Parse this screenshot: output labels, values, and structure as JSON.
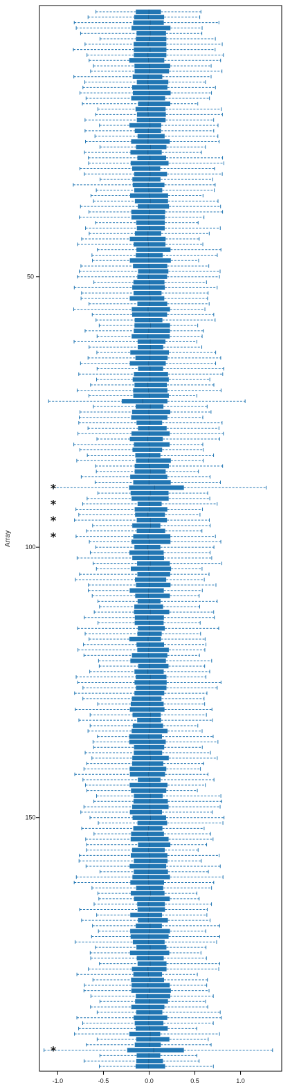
{
  "chart_data": {
    "type": "boxplot",
    "orientation": "horizontal",
    "ylabel": "Array",
    "xlabel": "",
    "xlim": [
      -1.2,
      1.45
    ],
    "x_ticks": [
      -1.0,
      -0.5,
      0.0,
      0.5,
      1.0
    ],
    "x_tick_labels": [
      "-1.0",
      "-0.5",
      "0.0",
      "0.5",
      "1.0"
    ],
    "y_ticks": [
      50,
      100,
      150
    ],
    "y_tick_labels": [
      "50",
      "100",
      "150"
    ],
    "n_arrays": 196,
    "box_color": "#2176b3",
    "whisker_color": "#2176b3",
    "whisker_style": "dashed",
    "flagged_arrays": [
      89,
      92,
      95,
      98,
      193
    ],
    "flag_symbol": "*",
    "typical_box": {
      "q1": -0.17,
      "median": 0.0,
      "q3": 0.18
    },
    "typical_whiskers": {
      "low": -0.68,
      "high": 0.67
    },
    "outlier_box_examples": [
      {
        "array": 89,
        "q1": -0.22,
        "q3": 0.38,
        "whisker_low": -1.05,
        "whisker_high": 1.28
      },
      {
        "array": 73,
        "q1": -0.3,
        "q3": 0.2,
        "whisker_low": -1.1,
        "whisker_high": 1.05
      },
      {
        "array": 193,
        "q1": -0.24,
        "q3": 0.38,
        "whisker_low": -1.15,
        "whisker_high": 1.35
      }
    ]
  }
}
